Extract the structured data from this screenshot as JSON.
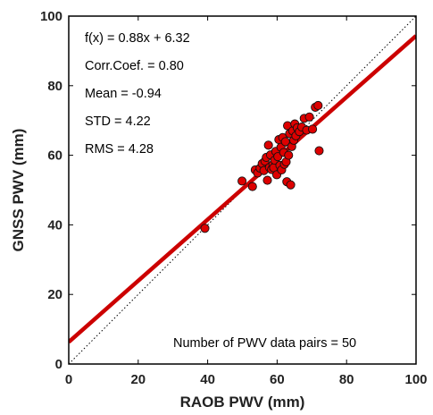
{
  "chart_data": {
    "type": "scatter",
    "xlabel": "RAOB PWV (mm)",
    "ylabel": "GNSS PWV (mm)",
    "xlim": [
      0,
      100
    ],
    "ylim": [
      0,
      100
    ],
    "xticks": [
      0,
      20,
      40,
      60,
      80,
      100
    ],
    "yticks": [
      0,
      20,
      40,
      60,
      80,
      100
    ],
    "grid": false,
    "annotations": [
      "f(x) = 0.88x + 6.32",
      "Corr.Coef. = 0.80",
      "Mean = -0.94",
      "STD = 4.22",
      "RMS = 4.28"
    ],
    "footnote": "Number of PWV data pairs = 50",
    "fit_line": {
      "slope": 0.88,
      "intercept": 6.32,
      "color": "#cc0000"
    },
    "identity_line": {
      "slope": 1,
      "intercept": 0,
      "style": "dotted",
      "color": "#000000"
    },
    "marker_color": "#dd0000",
    "marker_edge": "#111111",
    "x": [
      39.2,
      49.9,
      52.9,
      53.7,
      54.4,
      55.1,
      55.7,
      56.2,
      56.5,
      56.9,
      57.2,
      57.5,
      57.8,
      58.1,
      58.4,
      58.8,
      59.0,
      59.3,
      59.6,
      59.9,
      60.2,
      60.5,
      60.8,
      61.1,
      61.3,
      61.6,
      61.9,
      62.1,
      62.4,
      62.6,
      62.8,
      63.0,
      63.3,
      63.6,
      63.9,
      64.2,
      64.5,
      64.8,
      65.1,
      65.4,
      65.8,
      66.4,
      67.1,
      67.8,
      68.5,
      69.3,
      70.2,
      71.0,
      71.8,
      72.1
    ],
    "y": [
      39.0,
      52.6,
      51.0,
      55.8,
      54.9,
      56.3,
      57.6,
      55.6,
      58.3,
      59.4,
      52.8,
      62.9,
      56.5,
      60.1,
      55.9,
      57.3,
      56.4,
      58.6,
      61.1,
      54.4,
      59.6,
      64.5,
      57.1,
      62.3,
      55.8,
      65.1,
      60.8,
      57.4,
      63.9,
      58.1,
      52.4,
      68.5,
      60.0,
      66.2,
      51.5,
      62.5,
      67.0,
      64.3,
      69.0,
      65.6,
      67.9,
      66.8,
      68.1,
      70.6,
      67.2,
      71.0,
      67.5,
      73.8,
      74.3,
      61.3
    ]
  }
}
